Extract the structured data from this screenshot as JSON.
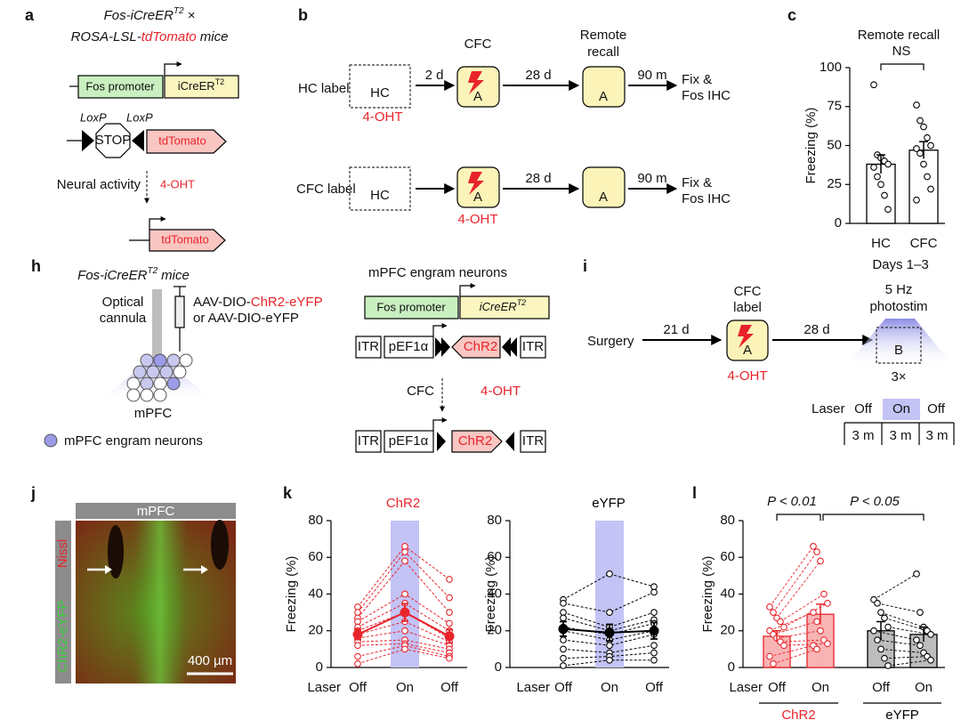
{
  "panel_labels": [
    "a",
    "b",
    "c",
    "h",
    "i",
    "j",
    "k",
    "l"
  ],
  "panel_a": {
    "title_1": "Fos-iCreER",
    "title_1_sup": "T2",
    "title_1_end": "×",
    "title_2": "ROSA-LSL-",
    "title_2_red": "tdTomato",
    "title_2_end": "mice",
    "promoter": "Fos promoter",
    "icre": "iCreER",
    "icre_sup": "T2",
    "loxp_1": "LoxP",
    "loxp_2": "LoxP",
    "stop": "STOP",
    "reporter": "tdTomato",
    "neural_activity": "Neural activity",
    "drug": "4-OHT",
    "reporter_2": "tdTomato"
  },
  "panel_b": {
    "cfc_header": "CFC",
    "recall_header": [
      "Remote",
      "recall"
    ],
    "rows": [
      {
        "label": "HC label",
        "start": "HC",
        "interval_1": "2 d",
        "context_1": "A",
        "interval_2": "28 d",
        "context_2": "A",
        "interval_3": "90 m",
        "end": [
          "Fix &",
          "Fos IHC"
        ],
        "drug": "4-OHT"
      },
      {
        "label": "CFC label",
        "start": "HC",
        "context_1": "A",
        "interval_2": "28 d",
        "context_2": "A",
        "interval_3": "90 m",
        "end": [
          "Fix &",
          "Fos IHC"
        ],
        "drug": "4-OHT"
      }
    ]
  },
  "panel_h": {
    "title": "Fos-iCreER",
    "title_sup": "T2",
    "title_end": "mice",
    "cannula": [
      "Optical",
      "cannula"
    ],
    "virus_1": "AAV-DIO-",
    "virus_1_red": "ChR2-eYFP",
    "virus_2": "or AAV-DIO-eYFP",
    "region": "mPFC",
    "legend": "mPFC engram neurons",
    "construct_title": "mPFC engram neurons",
    "promoter": "Fos promoter",
    "icre": "iCreER",
    "icre_sup": "T2",
    "vector_before": [
      "ITR",
      "pEF1α",
      "ChR2",
      "ITR"
    ],
    "stimulus": "CFC",
    "drug": "4-OHT",
    "vector_after": [
      "ITR",
      "pEF1α",
      "ChR2",
      "ITR"
    ]
  },
  "panel_i": {
    "start": "Surgery",
    "interval_1": "21 d",
    "label_step": [
      "CFC",
      "label"
    ],
    "context_1": "A",
    "drug": "4-OHT",
    "interval_2": "28 d",
    "stim": [
      "5 Hz",
      "photostim"
    ],
    "context_2": "B",
    "repeats": "3×",
    "laser": "Laser",
    "epochs": [
      "Off",
      "On",
      "Off"
    ],
    "durations": [
      "3 m",
      "3 m",
      "3 m"
    ]
  },
  "panel_j": {
    "region": "mPFC",
    "stain_1": "Nissl",
    "stain_2": "ChR2-eYFP",
    "scale": "400 µm"
  },
  "chart_data": [
    {
      "type": "bar",
      "title": "Remote recall",
      "annotation": "NS",
      "ylabel": "Freezing (%)",
      "xlabel": "Days 1–3",
      "categories": [
        "HC",
        "CFC"
      ],
      "values": [
        38,
        47
      ],
      "errors": [
        6,
        5.5
      ],
      "points": [
        [
          89,
          44,
          42,
          40,
          38,
          36,
          30,
          25,
          18,
          9
        ],
        [
          76,
          66,
          62,
          55,
          50,
          48,
          45,
          38,
          30,
          22,
          15
        ]
      ],
      "color": "#ffffff",
      "edgecolor": "#000000",
      "ylim": [
        0,
        100
      ],
      "yticks": [
        0,
        25,
        50,
        75,
        100
      ]
    },
    {
      "type": "line",
      "title": "ChR2",
      "title_color": "#e8242b",
      "ylabel": "Freezing (%)",
      "xlabel": "Laser",
      "categories": [
        "Off",
        "On",
        "Off"
      ],
      "band": {
        "index": 1,
        "color": "#c3c3f5"
      },
      "color": "#e8242b",
      "mean": {
        "values": [
          18,
          30,
          17
        ],
        "errors": [
          2.8,
          4.8,
          3.6
        ]
      },
      "individuals": [
        [
          33,
          66,
          48
        ],
        [
          30,
          63,
          38
        ],
        [
          27,
          58,
          30
        ],
        [
          25,
          40,
          24
        ],
        [
          22,
          35,
          20
        ],
        [
          20,
          30,
          16
        ],
        [
          18,
          25,
          14
        ],
        [
          16,
          20,
          12
        ],
        [
          14,
          15,
          10
        ],
        [
          12,
          13,
          8
        ],
        [
          6,
          12,
          6
        ],
        [
          2,
          10,
          5
        ]
      ],
      "ylim": [
        0,
        80
      ],
      "yticks": [
        0,
        20,
        40,
        60,
        80
      ]
    },
    {
      "type": "line",
      "title": "eYFP",
      "title_color": "#000000",
      "ylabel": "Freezing (%)",
      "xlabel": "Laser",
      "categories": [
        "Off",
        "On",
        "Off"
      ],
      "band": {
        "index": 1,
        "color": "#c3c3f5"
      },
      "color": "#000000",
      "mean": {
        "values": [
          21,
          19,
          20
        ],
        "errors": [
          4,
          4.5,
          4.5
        ]
      },
      "individuals": [
        [
          37,
          51,
          44
        ],
        [
          35,
          30,
          41
        ],
        [
          30,
          22,
          30
        ],
        [
          27,
          20,
          26
        ],
        [
          22,
          18,
          24
        ],
        [
          20,
          15,
          20
        ],
        [
          15,
          12,
          18
        ],
        [
          10,
          8,
          12
        ],
        [
          5,
          6,
          8
        ],
        [
          1,
          4,
          4
        ]
      ],
      "ylim": [
        0,
        80
      ],
      "yticks": [
        0,
        20,
        40,
        60,
        80
      ]
    },
    {
      "type": "bar",
      "ylabel": "Freezing (%)",
      "xlabel": "Laser",
      "categories": [
        "Off",
        "On",
        "Off",
        "On"
      ],
      "values": [
        17,
        29,
        20,
        18
      ],
      "errors": [
        3,
        5.5,
        5,
        4
      ],
      "colors": [
        "#f8b4b4",
        "#f8b4b4",
        "#bdbdbd",
        "#bdbdbd"
      ],
      "edgecolors": [
        "#e8242b",
        "#e8242b",
        "#000000",
        "#000000"
      ],
      "points": [
        [
          33,
          30,
          27,
          25,
          22,
          20,
          18,
          16,
          14,
          12,
          6,
          2
        ],
        [
          66,
          63,
          58,
          40,
          35,
          30,
          25,
          20,
          15,
          13,
          12,
          10
        ],
        [
          37,
          35,
          30,
          27,
          22,
          20,
          15,
          10,
          5,
          1
        ],
        [
          51,
          30,
          22,
          20,
          18,
          15,
          12,
          8,
          6,
          4
        ]
      ],
      "groups": [
        {
          "name": "ChR2",
          "color": "#e8242b"
        },
        {
          "name": "eYFP",
          "color": "#000000"
        }
      ],
      "annotations": [
        "P < 0.01",
        "P < 0.05"
      ],
      "ylim": [
        0,
        80
      ],
      "yticks": [
        0,
        20,
        40,
        60,
        80
      ]
    }
  ]
}
